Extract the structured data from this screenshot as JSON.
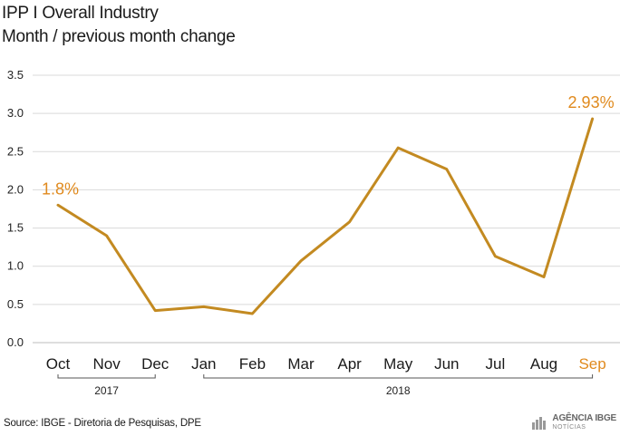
{
  "header": {
    "title": "IPP  I Overall Industry",
    "subtitle": "Month / previous month change"
  },
  "chart_data": {
    "type": "line",
    "categories": [
      "Oct",
      "Nov",
      "Dec",
      "Jan",
      "Feb",
      "Mar",
      "Apr",
      "May",
      "Jun",
      "Jul",
      "Aug",
      "Sep"
    ],
    "series": [
      {
        "values": [
          1.8,
          1.4,
          0.42,
          0.47,
          0.38,
          1.07,
          1.58,
          2.55,
          2.27,
          1.13,
          0.86,
          2.93
        ],
        "color": "#c38a21"
      }
    ],
    "ylim": [
      0,
      3.5
    ],
    "yticks": [
      "0.0",
      "0.5",
      "1.0",
      "1.5",
      "2.0",
      "2.5",
      "3.0",
      "3.5"
    ],
    "grid": true,
    "data_labels": [
      {
        "index": 0,
        "text": "1.8%"
      },
      {
        "index": 11,
        "text": "2.93%"
      }
    ],
    "highlight_category": "Sep",
    "highlight_color": "#e08a1e",
    "year_groups": [
      {
        "label": "2017",
        "from": 0,
        "to": 2
      },
      {
        "label": "2018",
        "from": 3,
        "to": 11
      }
    ]
  },
  "footer": {
    "source": "Source: IBGE - Diretoria de Pesquisas, DPE",
    "brand_name": "AGÊNCIA IBGE",
    "brand_sub": "NOTÍCIAS",
    "brand_icon": "ibge-logo-icon"
  }
}
